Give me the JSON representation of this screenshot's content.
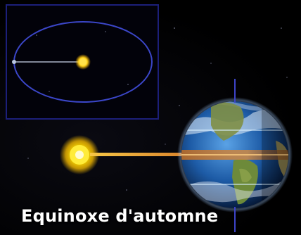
{
  "caption": "Equinoxe d'automne",
  "scene": {
    "inset": {
      "orbit_color": "#3b46c8",
      "sun_color": "#ffd21a",
      "earth_marker_color": "#b9c7e0"
    },
    "main": {
      "sun_color": "#ffe000",
      "light_beam_color": "#e08a2a",
      "equator_band_color": "#c9742a",
      "axis_color": "#3d44c9",
      "ocean_color": "#1b57a3",
      "land_color": "#6d8a3a",
      "latitude_line_color": "#d9f0ff"
    }
  }
}
